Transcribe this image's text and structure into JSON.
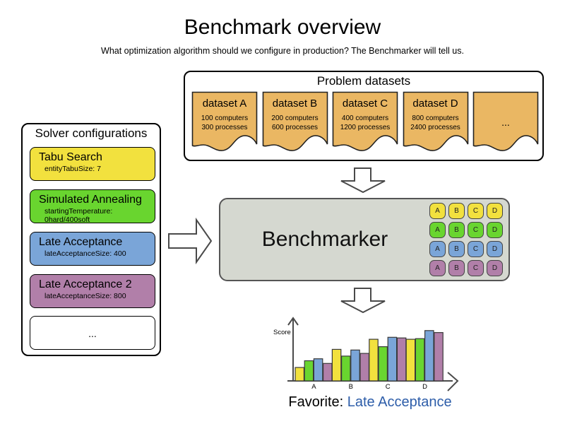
{
  "header": {
    "title": "Benchmark overview",
    "subtitle": "What optimization algorithm should we configure in production? The Benchmarker will tell us."
  },
  "problem_datasets": {
    "label": "Problem datasets",
    "card_color": "#eab763",
    "datasets": [
      {
        "name": "dataset A",
        "line1": "100 computers",
        "line2": "300 processes"
      },
      {
        "name": "dataset B",
        "line1": "200 computers",
        "line2": "600 processes"
      },
      {
        "name": "dataset C",
        "line1": "400 computers",
        "line2": "1200 processes"
      },
      {
        "name": "dataset D",
        "line1": "800 computers",
        "line2": "2400 processes"
      }
    ],
    "more_label": "..."
  },
  "solver_configs": {
    "label": "Solver configurations",
    "solvers": [
      {
        "name": "Tabu Search",
        "param": "entityTabuSize: 7",
        "color": "#f2e13e"
      },
      {
        "name": "Simulated Annealing",
        "param": "startingTemperature: 0hard/400soft",
        "color": "#69d52f"
      },
      {
        "name": "Late Acceptance",
        "param": "lateAcceptanceSize: 400",
        "color": "#7aa5d8"
      },
      {
        "name": "Late Acceptance 2",
        "param": "lateAcceptanceSize: 800",
        "color": "#b17fa9"
      }
    ],
    "more_label": "..."
  },
  "benchmarker": {
    "label": "Benchmarker",
    "grid": {
      "letters": [
        "A",
        "B",
        "C",
        "D"
      ],
      "row_colors": [
        "#f2e13e",
        "#69d52f",
        "#7aa5d8",
        "#b17fa9"
      ]
    }
  },
  "chart_data": {
    "type": "bar",
    "title": "",
    "xlabel": "",
    "ylabel": "Score",
    "categories": [
      "A",
      "B",
      "C",
      "D"
    ],
    "series": [
      {
        "name": "Tabu Search",
        "color": "#f2e13e",
        "values": [
          20,
          47,
          62,
          62
        ]
      },
      {
        "name": "Simulated Annealing",
        "color": "#69d52f",
        "values": [
          30,
          37,
          51,
          63
        ]
      },
      {
        "name": "Late Acceptance",
        "color": "#7aa5d8",
        "values": [
          33,
          46,
          65,
          75
        ]
      },
      {
        "name": "Late Acceptance 2",
        "color": "#b17fa9",
        "values": [
          26,
          41,
          64,
          72
        ]
      }
    ],
    "ylim": [
      0,
      100
    ],
    "legend": "none",
    "grid": false
  },
  "favorite": {
    "prefix": "Favorite: ",
    "value": "Late Acceptance",
    "value_color": "#2d5da9"
  }
}
